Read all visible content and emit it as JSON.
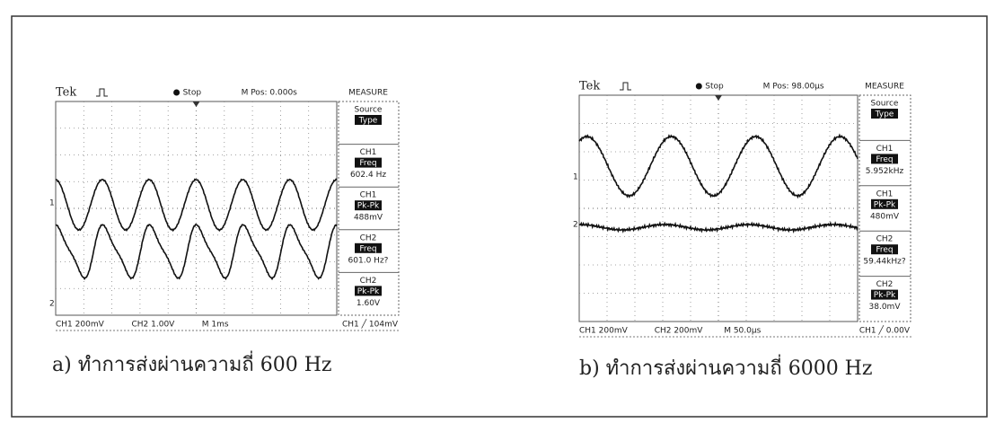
{
  "panels": [
    {
      "header": {
        "brand": "Tek",
        "trigger_state": "Stop",
        "position": "M Pos: 0.000s",
        "menu": "MEASURE"
      },
      "source": {
        "label": "Source",
        "param": "Type"
      },
      "measurements": [
        {
          "channel": "CH1",
          "param": "Freq",
          "reading": "602.4 Hz"
        },
        {
          "channel": "CH1",
          "param": "Pk-Pk",
          "reading": "488mV"
        },
        {
          "channel": "CH2",
          "param": "Freq",
          "reading": "601.0 Hz?"
        },
        {
          "channel": "CH2",
          "param": "Pk-Pk",
          "reading": "1.60V"
        }
      ],
      "markers": [
        "1",
        "2"
      ],
      "footer": {
        "ch1": "CH1 200mV",
        "ch2": "CH2 1.00V",
        "time": "M 1ms",
        "trigger": "CH1 ╱ 104mV"
      },
      "caption": "a) ทำการส่งผ่านความถี่ 600 Hz"
    },
    {
      "header": {
        "brand": "Tek",
        "trigger_state": "Stop",
        "position": "M Pos: 98.00μs",
        "menu": "MEASURE"
      },
      "source": {
        "label": "Source",
        "param": "Type"
      },
      "measurements": [
        {
          "channel": "CH1",
          "param": "Freq",
          "reading": "5.952kHz"
        },
        {
          "channel": "CH1",
          "param": "Pk-Pk",
          "reading": "480mV"
        },
        {
          "channel": "CH2",
          "param": "Freq",
          "reading": "59.44kHz?"
        },
        {
          "channel": "CH2",
          "param": "Pk-Pk",
          "reading": "38.0mV"
        }
      ],
      "markers": [
        "1",
        "2"
      ],
      "footer": {
        "ch1": "CH1 200mV",
        "ch2": "CH2 200mV",
        "time": "M 50.0μs",
        "trigger": "CH1 ╱ 0.00V"
      },
      "caption": "b) ทำการส่งผ่านความถี่ 6000 Hz"
    }
  ]
}
